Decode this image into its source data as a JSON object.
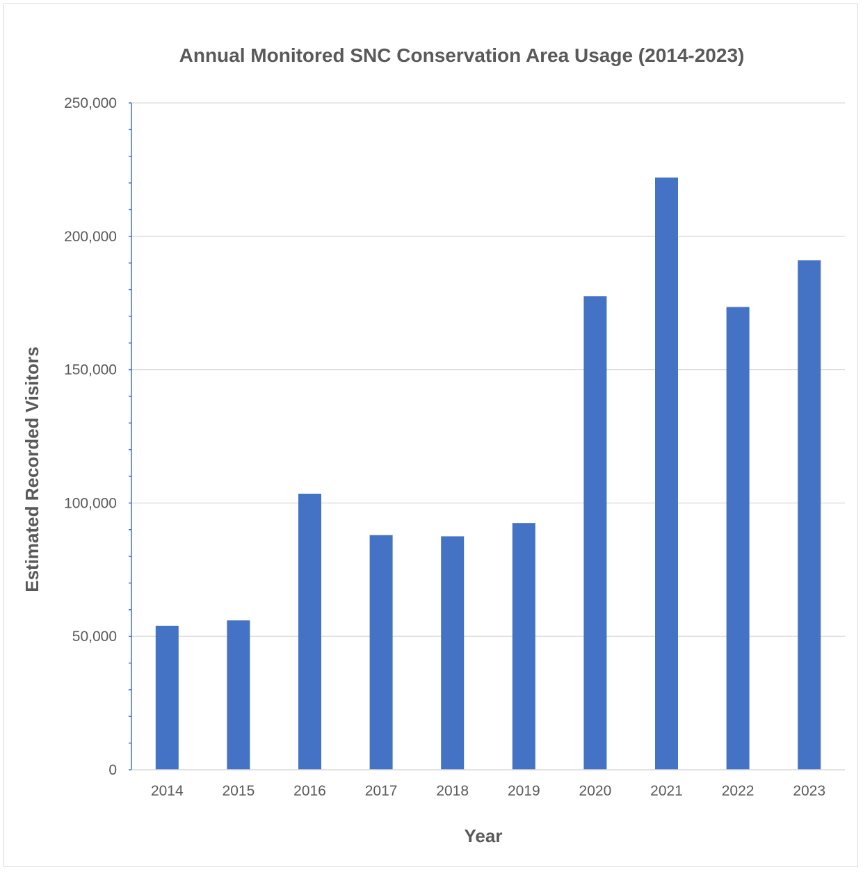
{
  "chart_data": {
    "type": "bar",
    "title": "Annual Monitored SNC Conservation Area Usage (2014-2023)",
    "xlabel": "Year",
    "ylabel": "Estimated Recorded Visitors",
    "categories": [
      "2014",
      "2015",
      "2016",
      "2017",
      "2018",
      "2019",
      "2020",
      "2021",
      "2022",
      "2023"
    ],
    "values": [
      54000,
      56000,
      103500,
      88000,
      87500,
      92500,
      177500,
      222000,
      173500,
      191000
    ],
    "ylim": [
      0,
      250000
    ],
    "yticks": [
      0,
      50000,
      100000,
      150000,
      200000,
      250000
    ],
    "ytick_labels": [
      "0",
      "50,000",
      "100,000",
      "150,000",
      "200,000",
      "250,000"
    ],
    "bar_color": "#4472C4",
    "grid": true,
    "legend": "none"
  }
}
